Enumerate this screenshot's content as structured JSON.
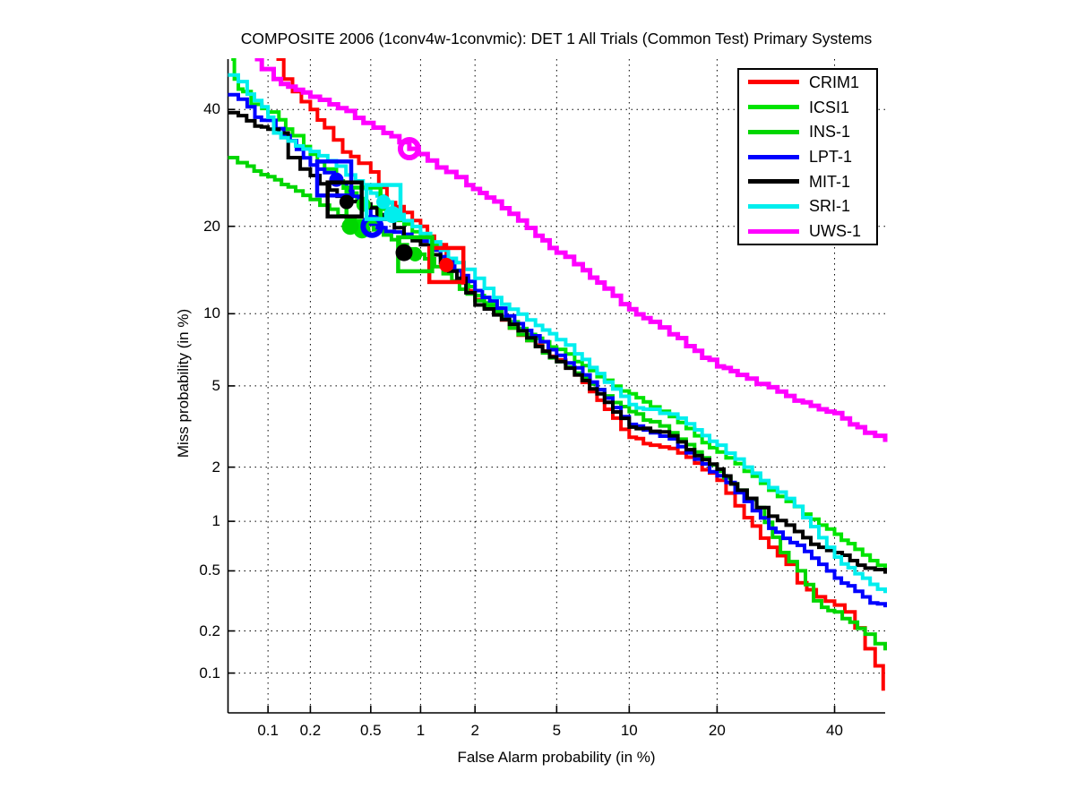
{
  "title": "COMPOSITE 2006 (1conv4w-1convmic): DET 1 All Trials (Common Test) Primary Systems",
  "axes": {
    "x_label": "False Alarm probability (in %)",
    "y_label": "Miss probability (in %)",
    "scale": "normal-deviate (probit) on both axes",
    "x_ticks": [
      0.1,
      0.2,
      0.5,
      1,
      2,
      5,
      10,
      20,
      40
    ],
    "y_ticks": [
      40,
      20,
      10,
      5,
      2,
      1,
      0.5,
      0.2,
      0.1
    ],
    "x_range_pct": [
      0.05,
      50
    ],
    "y_range_pct": [
      0.05,
      50
    ],
    "grid": "dotted black at every labeled tick"
  },
  "legend": {
    "position": "top-right",
    "entries": [
      "CRIM1",
      "ICSI1",
      "INS-1",
      "LPT-1",
      "MIT-1",
      "SRI-1",
      "UWS-1"
    ]
  },
  "chart_data": {
    "type": "line",
    "subtype": "DET curves (False Alarm % vs Miss %), stepped curves on probit axes",
    "title": "COMPOSITE 2006 (1conv4w-1convmic): DET 1 All Trials (Common Test) Primary Systems",
    "xlabel": "False Alarm probability (in %)",
    "ylabel": "Miss probability (in %)",
    "series": [
      {
        "name": "CRIM1",
        "color": "#ff0000",
        "width": 4,
        "points": [
          [
            0.115,
            50
          ],
          [
            0.13,
            46
          ],
          [
            0.15,
            43.5
          ],
          [
            0.2,
            40
          ],
          [
            0.25,
            36.5
          ],
          [
            0.33,
            32
          ],
          [
            0.42,
            30
          ],
          [
            0.5,
            28.5
          ],
          [
            0.63,
            23.5
          ],
          [
            0.8,
            22
          ],
          [
            1.0,
            20
          ],
          [
            1.2,
            17.5
          ],
          [
            1.4,
            15.5
          ],
          [
            1.7,
            13
          ],
          [
            2,
            11.3
          ],
          [
            2.5,
            10
          ],
          [
            3,
            8.8
          ],
          [
            4,
            7.5
          ],
          [
            5,
            6.5
          ],
          [
            6,
            5.6
          ],
          [
            8,
            3.9
          ],
          [
            10,
            2.85
          ],
          [
            12,
            2.6
          ],
          [
            14,
            2.5
          ],
          [
            17,
            2.1
          ],
          [
            20,
            1.7
          ],
          [
            24,
            1.05
          ],
          [
            28,
            0.7
          ],
          [
            31,
            0.55
          ],
          [
            33,
            0.42
          ],
          [
            36.5,
            0.34
          ],
          [
            40,
            0.3
          ],
          [
            42,
            0.27
          ],
          [
            44,
            0.21
          ],
          [
            46,
            0.15
          ],
          [
            48,
            0.113
          ],
          [
            49.6,
            0.074
          ]
        ],
        "markers": [
          {
            "shape": "square",
            "point": [
              1.4,
              15
            ]
          },
          {
            "shape": "dot",
            "point": [
              1.4,
              15
            ]
          }
        ]
      },
      {
        "name": "ICSI1",
        "color": "#00e400",
        "width": 4,
        "points": [
          [
            0.053,
            50
          ],
          [
            0.056,
            46
          ],
          [
            0.06,
            44
          ],
          [
            0.065,
            43.5
          ],
          [
            0.075,
            41
          ],
          [
            0.09,
            40.2
          ],
          [
            0.1,
            39.5
          ],
          [
            0.12,
            38
          ],
          [
            0.15,
            35
          ],
          [
            0.18,
            33
          ],
          [
            0.2,
            31.6
          ],
          [
            0.25,
            29
          ],
          [
            0.3,
            27
          ],
          [
            0.37,
            25
          ],
          [
            0.45,
            23.2
          ],
          [
            0.55,
            22.5
          ],
          [
            0.65,
            21.8
          ],
          [
            0.8,
            20.3
          ],
          [
            1,
            18.5
          ],
          [
            1.3,
            16
          ],
          [
            1.7,
            13.5
          ],
          [
            2,
            11.7
          ],
          [
            2.5,
            10.5
          ],
          [
            3,
            9.3
          ],
          [
            4,
            8
          ],
          [
            5,
            7.2
          ],
          [
            6,
            6.4
          ],
          [
            8,
            5.3
          ],
          [
            10,
            4.6
          ],
          [
            12,
            4
          ],
          [
            14,
            3.6
          ],
          [
            17,
            2.9
          ],
          [
            20,
            2.4
          ],
          [
            24,
            1.9
          ],
          [
            28,
            1.5
          ],
          [
            31,
            1.3
          ],
          [
            34,
            1.1
          ],
          [
            37,
            0.95
          ],
          [
            40,
            0.84
          ],
          [
            44,
            0.68
          ],
          [
            47,
            0.58
          ],
          [
            50,
            0.52
          ]
        ],
        "markers": [
          {
            "shape": "square",
            "point": [
              0.45,
              23.2
            ]
          },
          {
            "shape": "dot",
            "point": [
              0.45,
              23.2
            ]
          },
          {
            "shape": "circle_filled",
            "point": [
              0.44,
              19.5
            ]
          }
        ]
      },
      {
        "name": "INS-1",
        "color": "#00d600",
        "width": 4,
        "points": [
          [
            0.05,
            31
          ],
          [
            0.07,
            29.5
          ],
          [
            0.1,
            27.7
          ],
          [
            0.14,
            26
          ],
          [
            0.2,
            24
          ],
          [
            0.27,
            22.5
          ],
          [
            0.35,
            21
          ],
          [
            0.45,
            20.4
          ],
          [
            0.6,
            18.8
          ],
          [
            0.75,
            17.5
          ],
          [
            0.93,
            16.3
          ],
          [
            1.2,
            14.8
          ],
          [
            1.5,
            13.2
          ],
          [
            2,
            11.2
          ],
          [
            2.5,
            10.2
          ],
          [
            3,
            8.8
          ],
          [
            4,
            7.4
          ],
          [
            5,
            6.4
          ],
          [
            6,
            5.7
          ],
          [
            8,
            4.5
          ],
          [
            10,
            3.8
          ],
          [
            12,
            3.4
          ],
          [
            14,
            3
          ],
          [
            17,
            2.4
          ],
          [
            20,
            1.9
          ],
          [
            23,
            1.5
          ],
          [
            26,
            1.2
          ],
          [
            30,
            0.65
          ],
          [
            33,
            0.5
          ],
          [
            36,
            0.32
          ],
          [
            37.5,
            0.29
          ],
          [
            40,
            0.27
          ],
          [
            43,
            0.23
          ],
          [
            46,
            0.19
          ],
          [
            50,
            0.146
          ]
        ],
        "markers": [
          {
            "shape": "square",
            "point": [
              0.93,
              16.3
            ]
          },
          {
            "shape": "dot",
            "point": [
              0.93,
              16.3
            ]
          },
          {
            "shape": "circle_filled",
            "point": [
              0.37,
              20
            ]
          }
        ]
      },
      {
        "name": "LPT-1",
        "color": "#0000ff",
        "width": 4,
        "points": [
          [
            0.05,
            42.9
          ],
          [
            0.06,
            42
          ],
          [
            0.07,
            40.5
          ],
          [
            0.08,
            38.5
          ],
          [
            0.1,
            37.9
          ],
          [
            0.13,
            35
          ],
          [
            0.16,
            32.5
          ],
          [
            0.2,
            29.7
          ],
          [
            0.25,
            28.4
          ],
          [
            0.29,
            27.4
          ],
          [
            0.35,
            25.5
          ],
          [
            0.42,
            23
          ],
          [
            0.5,
            20.3
          ],
          [
            0.55,
            19.8
          ],
          [
            0.7,
            19.2
          ],
          [
            1,
            18
          ],
          [
            1.3,
            16
          ],
          [
            1.7,
            13.8
          ],
          [
            2,
            12.2
          ],
          [
            2.6,
            10.5
          ],
          [
            3.5,
            8.6
          ],
          [
            5,
            6.8
          ],
          [
            6.5,
            5.6
          ],
          [
            8,
            4.4
          ],
          [
            10,
            3.3
          ],
          [
            12,
            3
          ],
          [
            14,
            2.8
          ],
          [
            17,
            2.2
          ],
          [
            20,
            1.8
          ],
          [
            24,
            1.3
          ],
          [
            28,
            0.91
          ],
          [
            33,
            0.72
          ],
          [
            37,
            0.55
          ],
          [
            40,
            0.45
          ],
          [
            44,
            0.37
          ],
          [
            47,
            0.31
          ],
          [
            50,
            0.29
          ]
        ],
        "markers": [
          {
            "shape": "square",
            "point": [
              0.29,
              27.4
            ]
          },
          {
            "shape": "dot",
            "point": [
              0.3,
              27.2
            ]
          },
          {
            "shape": "circle_open",
            "point": [
              0.51,
              20
            ]
          }
        ]
      },
      {
        "name": "MIT-1",
        "color": "#000000",
        "width": 4,
        "points": [
          [
            0.05,
            39.4
          ],
          [
            0.06,
            38.8
          ],
          [
            0.08,
            36.8
          ],
          [
            0.1,
            36.2
          ],
          [
            0.12,
            35.5
          ],
          [
            0.14,
            31
          ],
          [
            0.17,
            29
          ],
          [
            0.2,
            27.9
          ],
          [
            0.27,
            25.5
          ],
          [
            0.34,
            24
          ],
          [
            0.42,
            23.3
          ],
          [
            0.5,
            22.7
          ],
          [
            0.6,
            21
          ],
          [
            0.7,
            19.8
          ],
          [
            0.8,
            18.5
          ],
          [
            1,
            17.5
          ],
          [
            1.3,
            15.3
          ],
          [
            1.6,
            13.5
          ],
          [
            2,
            10.8
          ],
          [
            2.5,
            9.9
          ],
          [
            3,
            9.1
          ],
          [
            4,
            7.4
          ],
          [
            5,
            6.4
          ],
          [
            6,
            5.6
          ],
          [
            8,
            4.2
          ],
          [
            10,
            3.2
          ],
          [
            12,
            3.05
          ],
          [
            14,
            2.9
          ],
          [
            17,
            2.3
          ],
          [
            20,
            1.95
          ],
          [
            23,
            1.5
          ],
          [
            26,
            1.2
          ],
          [
            28,
            1.07
          ],
          [
            31,
            0.95
          ],
          [
            34,
            0.8
          ],
          [
            37,
            0.7
          ],
          [
            40,
            0.65
          ],
          [
            43,
            0.58
          ],
          [
            46,
            0.52
          ],
          [
            50,
            0.48
          ]
        ],
        "markers": [
          {
            "shape": "square",
            "point": [
              0.34,
              24
            ]
          },
          {
            "shape": "dot",
            "point": [
              0.35,
              23.6
            ]
          },
          {
            "shape": "circle_filled",
            "point": [
              0.8,
              16.5
            ]
          }
        ]
      },
      {
        "name": "SRI-1",
        "color": "#00eeee",
        "width": 4,
        "points": [
          [
            0.05,
            46.8
          ],
          [
            0.06,
            45.5
          ],
          [
            0.07,
            43
          ],
          [
            0.09,
            40.5
          ],
          [
            0.1,
            38.5
          ],
          [
            0.11,
            35.5
          ],
          [
            0.14,
            34
          ],
          [
            0.2,
            32.1
          ],
          [
            0.3,
            29.5
          ],
          [
            0.4,
            27
          ],
          [
            0.5,
            25
          ],
          [
            0.6,
            23.6
          ],
          [
            0.68,
            21.7
          ],
          [
            0.8,
            20.8
          ],
          [
            1,
            19
          ],
          [
            1.3,
            16.8
          ],
          [
            1.75,
            14.5
          ],
          [
            2,
            13.5
          ],
          [
            2.5,
            11.5
          ],
          [
            3,
            10.4
          ],
          [
            4,
            9
          ],
          [
            5,
            7.9
          ],
          [
            6,
            6.9
          ],
          [
            8,
            5.2
          ],
          [
            10,
            4.1
          ],
          [
            12,
            3.9
          ],
          [
            14,
            3.7
          ],
          [
            17,
            3.1
          ],
          [
            20,
            2.6
          ],
          [
            24,
            2
          ],
          [
            28,
            1.55
          ],
          [
            31,
            1.35
          ],
          [
            34,
            1.05
          ],
          [
            37,
            0.8
          ],
          [
            40,
            0.61
          ],
          [
            44,
            0.48
          ],
          [
            47,
            0.41
          ],
          [
            50,
            0.36
          ]
        ],
        "markers": [
          {
            "shape": "square",
            "point": [
              0.6,
              23.6
            ]
          },
          {
            "shape": "dot",
            "point": [
              0.6,
              23.6
            ]
          },
          {
            "shape": "circle_filled",
            "point": [
              0.68,
              21.7
            ]
          }
        ]
      },
      {
        "name": "UWS-1",
        "color": "#ff00ff",
        "width": 5,
        "points": [
          [
            0.08,
            50
          ],
          [
            0.09,
            48
          ],
          [
            0.11,
            46
          ],
          [
            0.14,
            44.5
          ],
          [
            0.2,
            42.5
          ],
          [
            0.27,
            41
          ],
          [
            0.35,
            39.7
          ],
          [
            0.45,
            37.4
          ],
          [
            0.6,
            35.5
          ],
          [
            0.75,
            33.8
          ],
          [
            0.86,
            32.6
          ],
          [
            1.1,
            30.5
          ],
          [
            1.4,
            28.5
          ],
          [
            1.8,
            26.3
          ],
          [
            2.3,
            24.3
          ],
          [
            3,
            21.8
          ],
          [
            4,
            18.7
          ],
          [
            5,
            16.5
          ],
          [
            6.5,
            14.4
          ],
          [
            8,
            12.4
          ],
          [
            10,
            10.4
          ],
          [
            12,
            9.3
          ],
          [
            14,
            8.3
          ],
          [
            17,
            7.1
          ],
          [
            20,
            6.1
          ],
          [
            23,
            5.6
          ],
          [
            26,
            5.1
          ],
          [
            28,
            4.93
          ],
          [
            31,
            4.5
          ],
          [
            34,
            4.2
          ],
          [
            37,
            3.9
          ],
          [
            40,
            3.74
          ],
          [
            43,
            3.3
          ],
          [
            46,
            3
          ],
          [
            50,
            2.7
          ]
        ],
        "markers": [
          {
            "shape": "circle_open",
            "point": [
              0.86,
              32.6
            ]
          }
        ]
      }
    ]
  }
}
